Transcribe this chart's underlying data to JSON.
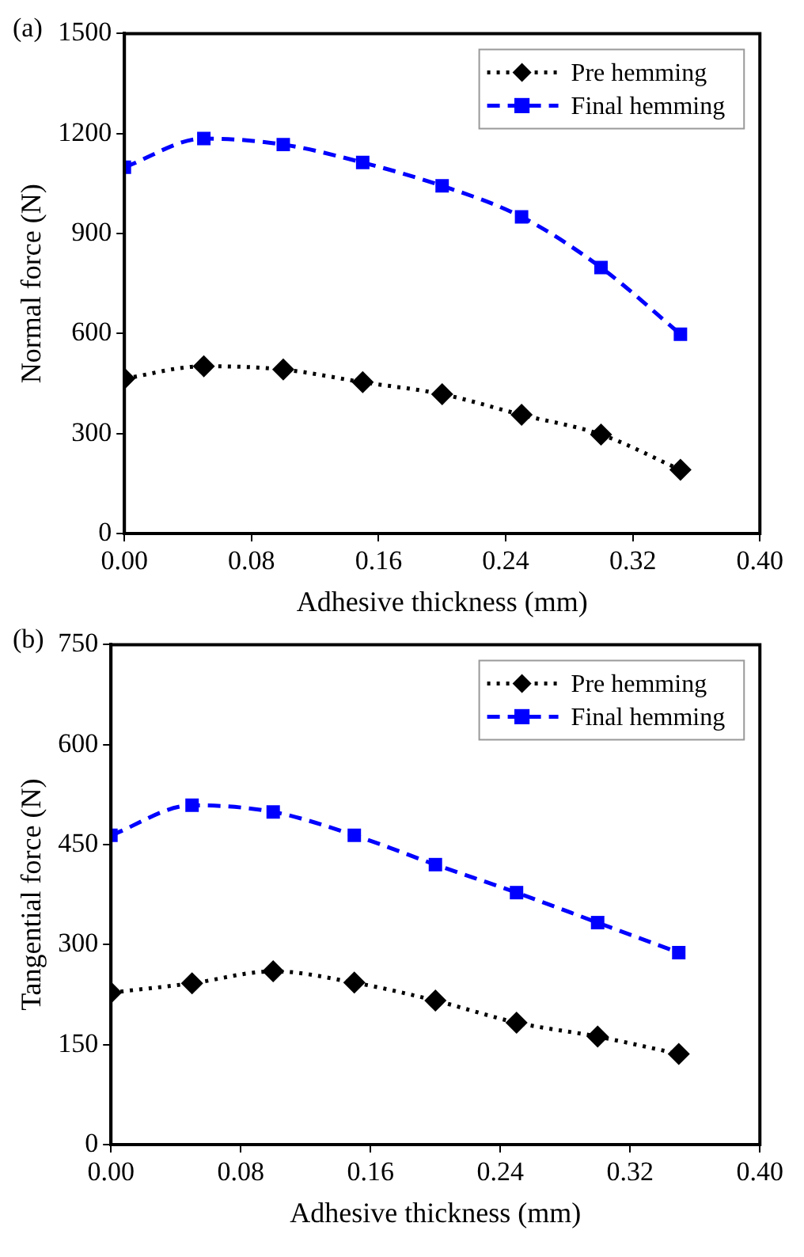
{
  "chart_data": [
    {
      "type": "line",
      "annotations": [
        "(a)"
      ],
      "xlabel": "Adhesive thickness (mm)",
      "ylabel": "Normal force (N)",
      "x": [
        0,
        0.05,
        0.1,
        0.15,
        0.2,
        0.25,
        0.3,
        0.35
      ],
      "xlim": [
        0,
        0.4
      ],
      "xticks": [
        {
          "value": 0,
          "label": "0.00"
        },
        {
          "value": 0.08,
          "label": "0.08"
        },
        {
          "value": 0.16,
          "label": "0.16"
        },
        {
          "value": 0.24,
          "label": "0.24"
        },
        {
          "value": 0.32,
          "label": "0.32"
        },
        {
          "value": 0.4,
          "label": "0.40"
        }
      ],
      "ylim": [
        0,
        1500
      ],
      "yticks": [
        0,
        300,
        600,
        900,
        1200,
        1500
      ],
      "grid": false,
      "legend": "top right",
      "series": [
        {
          "name": "Pre hemming",
          "color": "#000000",
          "marker": "diamond",
          "line_style": "dotted",
          "values": [
            465,
            502,
            492,
            454,
            418,
            356,
            297,
            191
          ]
        },
        {
          "name": "Final hemming",
          "color": "#0000ff",
          "marker": "square",
          "line_style": "dashed",
          "values": [
            1099,
            1185,
            1167,
            1113,
            1043,
            950,
            798,
            598
          ]
        }
      ]
    },
    {
      "type": "line",
      "annotations": [
        "(b)"
      ],
      "xlabel": "Adhesive thickness (mm)",
      "ylabel": "Tangential force (N)",
      "x": [
        0,
        0.05,
        0.1,
        0.15,
        0.2,
        0.25,
        0.3,
        0.35
      ],
      "xlim": [
        0,
        0.4
      ],
      "xticks": [
        {
          "value": 0,
          "label": "0.00"
        },
        {
          "value": 0.08,
          "label": "0.08"
        },
        {
          "value": 0.16,
          "label": "0.16"
        },
        {
          "value": 0.24,
          "label": "0.24"
        },
        {
          "value": 0.32,
          "label": "0.32"
        },
        {
          "value": 0.4,
          "label": "0.40"
        }
      ],
      "ylim": [
        0,
        750
      ],
      "yticks": [
        0,
        150,
        300,
        450,
        600,
        750
      ],
      "grid": false,
      "legend": "top right",
      "series": [
        {
          "name": "Pre hemming",
          "color": "#000000",
          "marker": "diamond",
          "line_style": "dotted",
          "values": [
            228,
            242,
            260,
            243,
            216,
            183,
            162,
            136
          ]
        },
        {
          "name": "Final hemming",
          "color": "#0000ff",
          "marker": "square",
          "line_style": "dashed",
          "values": [
            464,
            509,
            499,
            464,
            420,
            378,
            333,
            288
          ]
        }
      ]
    }
  ]
}
